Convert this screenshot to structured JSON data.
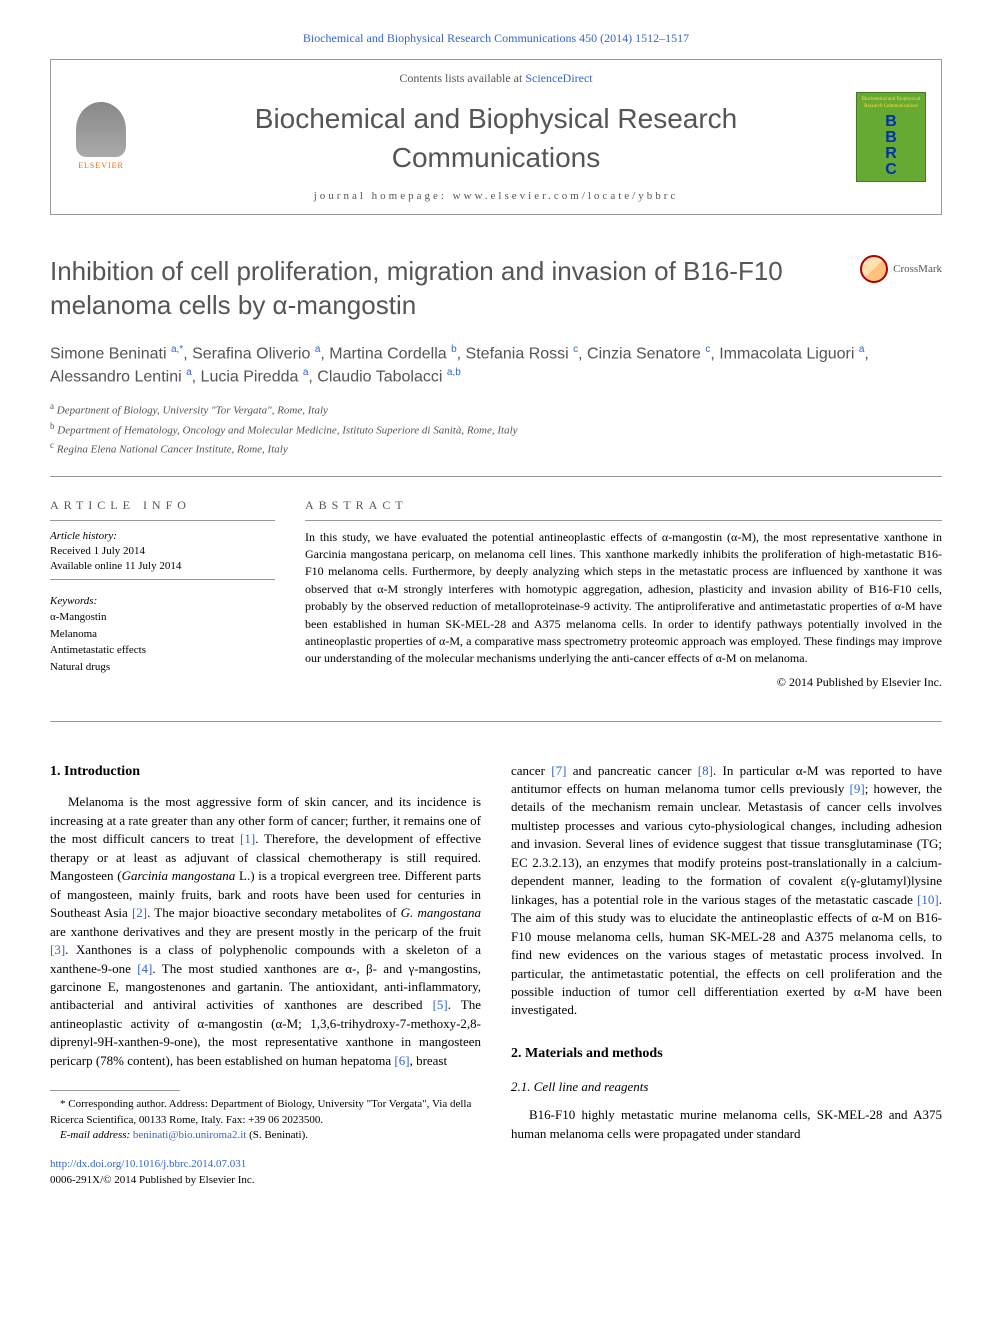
{
  "journal_ref": "Biochemical and Biophysical Research Communications 450 (2014) 1512–1517",
  "header": {
    "contents_prefix": "Contents lists available at ",
    "contents_link": "ScienceDirect",
    "journal_title": "Biochemical and Biophysical Research Communications",
    "homepage_prefix": "journal homepage: ",
    "homepage_url": "www.elsevier.com/locate/ybbrc",
    "elsevier": "ELSEVIER",
    "cover": {
      "bbrc": "B\nB\nR\nC",
      "mini_title": "Biochemical and Biophysical Research Communications"
    }
  },
  "crossmark": "CrossMark",
  "article": {
    "title": "Inhibition of cell proliferation, migration and invasion of B16-F10 melanoma cells by α-mangostin",
    "authors_html": "Simone Beninati <sup>a,*</sup>, Serafina Oliverio <sup>a</sup>, Martina Cordella <sup>b</sup>, Stefania Rossi <sup>c</sup>, Cinzia Senatore <sup>c</sup>, Immacolata Liguori <sup>a</sup>, Alessandro Lentini <sup>a</sup>, Lucia Piredda <sup>a</sup>, Claudio Tabolacci <sup>a,b</sup>",
    "affiliations": [
      "a Department of Biology, University \"Tor Vergata\", Rome, Italy",
      "b Department of Hematology, Oncology and Molecular Medicine, Istituto Superiore di Sanità, Rome, Italy",
      "c Regina Elena National Cancer Institute, Rome, Italy"
    ]
  },
  "info": {
    "label": "ARTICLE INFO",
    "history_label": "Article history:",
    "received": "Received 1 July 2014",
    "available": "Available online 11 July 2014",
    "keywords_label": "Keywords:",
    "keywords": [
      "α-Mangostin",
      "Melanoma",
      "Antimetastatic effects",
      "Natural drugs"
    ]
  },
  "abstract": {
    "label": "ABSTRACT",
    "body": "In this study, we have evaluated the potential antineoplastic effects of α-mangostin (α-M), the most representative xanthone in Garcinia mangostana pericarp, on melanoma cell lines. This xanthone markedly inhibits the proliferation of high-metastatic B16-F10 melanoma cells. Furthermore, by deeply analyzing which steps in the metastatic process are influenced by xanthone it was observed that α-M strongly interferes with homotypic aggregation, adhesion, plasticity and invasion ability of B16-F10 cells, probably by the observed reduction of metalloproteinase-9 activity. The antiproliferative and antimetastatic properties of α-M have been established in human SK-MEL-28 and A375 melanoma cells. In order to identify pathways potentially involved in the antineoplastic properties of α-M, a comparative mass spectrometry proteomic approach was employed. These findings may improve our understanding of the molecular mechanisms underlying the anti-cancer effects of α-M on melanoma.",
    "copyright": "© 2014 Published by Elsevier Inc."
  },
  "body": {
    "intro_heading": "1. Introduction",
    "intro_para": "Melanoma is the most aggressive form of skin cancer, and its incidence is increasing at a rate greater than any other form of cancer; further, it remains one of the most difficult cancers to treat [1]. Therefore, the development of effective therapy or at least as adjuvant of classical chemotherapy is still required. Mangosteen (Garcinia mangostana L.) is a tropical evergreen tree. Different parts of mangosteen, mainly fruits, bark and roots have been used for centuries in Southeast Asia [2]. The major bioactive secondary metabolites of G. mangostana are xanthone derivatives and they are present mostly in the pericarp of the fruit [3]. Xanthones is a class of polyphenolic compounds with a skeleton of a xanthene-9-one [4]. The most studied xanthones are α-, β- and γ-mangostins, garcinone E, mangostenones and gartanin. The antioxidant, anti-inflammatory, antibacterial and antiviral activities of xanthones are described [5]. The antineoplastic activity of α-mangostin (α-M; 1,3,6-trihydroxy-7-methoxy-2,8-diprenyl-9H-xanthen-9-one), the most representative xanthone in mangosteen pericarp (78% content), has been established on human hepatoma [6], breast",
    "col2_para": "cancer [7] and pancreatic cancer [8]. In particular α-M was reported to have antitumor effects on human melanoma tumor cells previously [9]; however, the details of the mechanism remain unclear. Metastasis of cancer cells involves multistep processes and various cyto-physiological changes, including adhesion and invasion. Several lines of evidence suggest that tissue transglutaminase (TG; EC 2.3.2.13), an enzymes that modify proteins post-translationally in a calcium-dependent manner, leading to the formation of covalent ε(γ-glutamyl)lysine linkages, has a potential role in the various stages of the metastatic cascade [10]. The aim of this study was to elucidate the antineoplastic effects of α-M on B16-F10 mouse melanoma cells, human SK-MEL-28 and A375 melanoma cells, to find new evidences on the various stages of metastatic process involved. In particular, the antimetastatic potential, the effects on cell proliferation and the possible induction of tumor cell differentiation exerted by α-M have been investigated.",
    "methods_heading": "2. Materials and methods",
    "methods_sub": "2.1. Cell line and reagents",
    "methods_para": "B16-F10 highly metastatic murine melanoma cells, SK-MEL-28 and A375 human melanoma cells were propagated under standard"
  },
  "footnote": {
    "corr": "* Corresponding author. Address: Department of Biology, University \"Tor Vergata\", Via della Ricerca Scientifica, 00133 Rome, Italy. Fax: +39 06 2023500.",
    "email_label": "E-mail address: ",
    "email": "beninati@bio.uniroma2.it",
    "email_suffix": " (S. Beninati)."
  },
  "doi": {
    "url": "http://dx.doi.org/10.1016/j.bbrc.2014.07.031",
    "issn_line": "0006-291X/© 2014 Published by Elsevier Inc."
  },
  "colors": {
    "link": "#3366cc",
    "text_gray": "#555555",
    "border": "#999999"
  },
  "typography": {
    "journal_title_fontsize": 28,
    "article_title_fontsize": 26,
    "authors_fontsize": 16,
    "body_fontsize": 13,
    "abstract_fontsize": 12,
    "info_fontsize": 11
  }
}
